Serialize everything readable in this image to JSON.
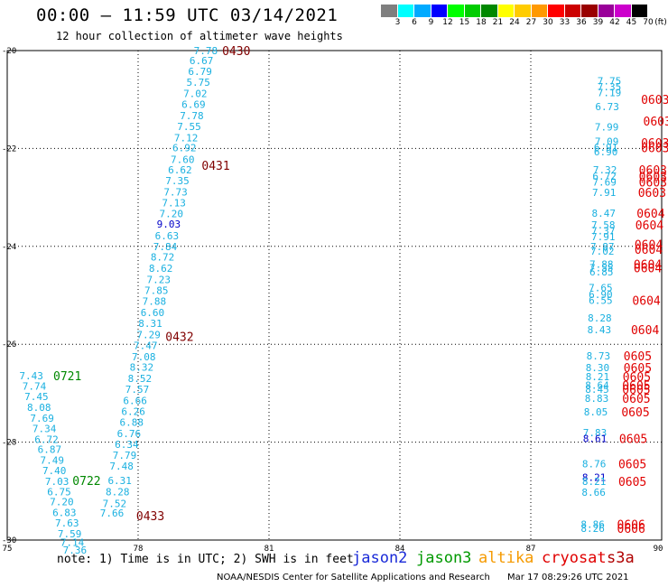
{
  "header": {
    "title": "00:00 – 11:59 UTC 03/14/2021",
    "subtitle": "12 hour collection of altimeter wave heights"
  },
  "legend": {
    "unit": "(ft)",
    "bins": [
      {
        "label": "3",
        "color": "#7f7f7f"
      },
      {
        "label": "6",
        "color": "#00ffff"
      },
      {
        "label": "9",
        "color": "#00aaff"
      },
      {
        "label": "12",
        "color": "#0000ff"
      },
      {
        "label": "15",
        "color": "#00ff00"
      },
      {
        "label": "18",
        "color": "#00cc00"
      },
      {
        "label": "21",
        "color": "#008800"
      },
      {
        "label": "24",
        "color": "#ffff00"
      },
      {
        "label": "27",
        "color": "#ffcc00"
      },
      {
        "label": "30",
        "color": "#ff9900"
      },
      {
        "label": "33",
        "color": "#ff0000"
      },
      {
        "label": "36",
        "color": "#cc0000"
      },
      {
        "label": "39",
        "color": "#990000"
      },
      {
        "label": "42",
        "color": "#990099"
      },
      {
        "label": "45",
        "color": "#cc00cc"
      },
      {
        "label": "70",
        "color": "#000000"
      }
    ]
  },
  "colors": {
    "swh_low": "#1ab0e0",
    "swh_mid": "#0000c8",
    "time_red": "#e00000",
    "time_dark": "#800000",
    "time_green": "#008800"
  },
  "note": "note: 1) Time is in UTC; 2) SWH is in feet",
  "missions": [
    {
      "label": "jason2",
      "color": "#1a2ad8"
    },
    {
      "label": "jason3",
      "color": "#009900"
    },
    {
      "label": "altika",
      "color": "#f59a00"
    },
    {
      "label": "cryosat",
      "color": "#e00000"
    },
    {
      "label": "s3a",
      "color": "#b00000"
    }
  ],
  "footer": {
    "credit": "NOAA/NESDIS Center for Satellite Applications and Research",
    "timestamp": "Mar 17 08:29:26 UTC 2021"
  },
  "map": {
    "lon_range": [
      75,
      90
    ],
    "lat_range": [
      -30,
      -20
    ],
    "x_ticks": [
      "75",
      "78",
      "81",
      "84",
      "87",
      "90"
    ],
    "y_ticks": [
      "-20",
      "-22",
      "-24",
      "-26",
      "-28",
      "-30"
    ],
    "swh_readings": [
      {
        "lon": 79.55,
        "lat": -20.0,
        "text": "7.78",
        "color": "#1ab0e0"
      },
      {
        "lon": 79.45,
        "lat": -20.2,
        "text": "6.67",
        "color": "#1ab0e0"
      },
      {
        "lon": 79.42,
        "lat": -20.42,
        "text": "6.79",
        "color": "#1ab0e0"
      },
      {
        "lon": 79.38,
        "lat": -20.65,
        "text": "5.75",
        "color": "#1ab0e0"
      },
      {
        "lon": 79.31,
        "lat": -20.88,
        "text": "7.02",
        "color": "#1ab0e0"
      },
      {
        "lon": 79.27,
        "lat": -21.1,
        "text": "6.69",
        "color": "#1ab0e0"
      },
      {
        "lon": 79.23,
        "lat": -21.33,
        "text": "7.78",
        "color": "#1ab0e0"
      },
      {
        "lon": 79.17,
        "lat": -21.55,
        "text": "7.55",
        "color": "#1ab0e0"
      },
      {
        "lon": 79.1,
        "lat": -21.78,
        "text": "7.12",
        "color": "#1ab0e0"
      },
      {
        "lon": 79.06,
        "lat": -21.98,
        "text": "6.92",
        "color": "#1ab0e0"
      },
      {
        "lon": 79.02,
        "lat": -22.22,
        "text": "7.60",
        "color": "#1ab0e0"
      },
      {
        "lon": 78.96,
        "lat": -22.44,
        "text": "6.62",
        "color": "#1ab0e0"
      },
      {
        "lon": 78.9,
        "lat": -22.66,
        "text": "7.35",
        "color": "#1ab0e0"
      },
      {
        "lon": 78.86,
        "lat": -22.89,
        "text": "7.73",
        "color": "#1ab0e0"
      },
      {
        "lon": 78.82,
        "lat": -23.11,
        "text": "7.13",
        "color": "#1ab0e0"
      },
      {
        "lon": 78.76,
        "lat": -23.33,
        "text": "7.20",
        "color": "#1ab0e0"
      },
      {
        "lon": 78.7,
        "lat": -23.54,
        "text": "9.03",
        "color": "#0000c8"
      },
      {
        "lon": 78.66,
        "lat": -23.78,
        "text": "6.63",
        "color": "#1ab0e0"
      },
      {
        "lon": 78.62,
        "lat": -24.0,
        "text": "7.84",
        "color": "#1ab0e0"
      },
      {
        "lon": 78.56,
        "lat": -24.22,
        "text": "8.72",
        "color": "#1ab0e0"
      },
      {
        "lon": 78.52,
        "lat": -24.45,
        "text": "8.62",
        "color": "#1ab0e0"
      },
      {
        "lon": 78.47,
        "lat": -24.68,
        "text": "7.23",
        "color": "#1ab0e0"
      },
      {
        "lon": 78.42,
        "lat": -24.9,
        "text": "7.85",
        "color": "#1ab0e0"
      },
      {
        "lon": 78.37,
        "lat": -25.12,
        "text": "7.88",
        "color": "#1ab0e0"
      },
      {
        "lon": 78.33,
        "lat": -25.35,
        "text": "6.60",
        "color": "#1ab0e0"
      },
      {
        "lon": 78.28,
        "lat": -25.57,
        "text": "8.31",
        "color": "#1ab0e0"
      },
      {
        "lon": 78.24,
        "lat": -25.8,
        "text": "7.29",
        "color": "#1ab0e0"
      },
      {
        "lon": 78.17,
        "lat": -26.02,
        "text": "7.47",
        "color": "#1ab0e0"
      },
      {
        "lon": 78.13,
        "lat": -26.25,
        "text": "7.08",
        "color": "#1ab0e0"
      },
      {
        "lon": 78.08,
        "lat": -26.47,
        "text": "8.32",
        "color": "#1ab0e0"
      },
      {
        "lon": 78.04,
        "lat": -26.7,
        "text": "8.52",
        "color": "#1ab0e0"
      },
      {
        "lon": 77.98,
        "lat": -26.92,
        "text": "7.57",
        "color": "#1ab0e0"
      },
      {
        "lon": 77.93,
        "lat": -27.15,
        "text": "6.66",
        "color": "#1ab0e0"
      },
      {
        "lon": 77.89,
        "lat": -27.37,
        "text": "6.26",
        "color": "#1ab0e0"
      },
      {
        "lon": 77.85,
        "lat": -27.59,
        "text": "6.88",
        "color": "#1ab0e0"
      },
      {
        "lon": 77.79,
        "lat": -27.82,
        "text": "6.76",
        "color": "#1ab0e0"
      },
      {
        "lon": 77.74,
        "lat": -28.04,
        "text": "6.34",
        "color": "#1ab0e0"
      },
      {
        "lon": 77.69,
        "lat": -28.27,
        "text": "7.79",
        "color": "#1ab0e0"
      },
      {
        "lon": 77.62,
        "lat": -28.49,
        "text": "7.48",
        "color": "#1ab0e0"
      },
      {
        "lon": 77.58,
        "lat": -28.78,
        "text": "6.31",
        "color": "#1ab0e0"
      },
      {
        "lon": 77.53,
        "lat": -29.01,
        "text": "8.28",
        "color": "#1ab0e0"
      },
      {
        "lon": 77.46,
        "lat": -29.25,
        "text": "7.52",
        "color": "#1ab0e0"
      },
      {
        "lon": 77.4,
        "lat": -29.45,
        "text": "7.66",
        "color": "#1ab0e0"
      },
      {
        "lon": 75.55,
        "lat": -26.64,
        "text": "7.43",
        "color": "#1ab0e0"
      },
      {
        "lon": 75.62,
        "lat": -26.85,
        "text": "7.74",
        "color": "#1ab0e0"
      },
      {
        "lon": 75.67,
        "lat": -27.07,
        "text": "7.45",
        "color": "#1ab0e0"
      },
      {
        "lon": 75.73,
        "lat": -27.29,
        "text": "8.08",
        "color": "#1ab0e0"
      },
      {
        "lon": 75.8,
        "lat": -27.51,
        "text": "7.69",
        "color": "#1ab0e0"
      },
      {
        "lon": 75.85,
        "lat": -27.72,
        "text": "7.34",
        "color": "#1ab0e0"
      },
      {
        "lon": 75.9,
        "lat": -27.94,
        "text": "6.72",
        "color": "#1ab0e0"
      },
      {
        "lon": 75.97,
        "lat": -28.15,
        "text": "6.87",
        "color": "#1ab0e0"
      },
      {
        "lon": 76.03,
        "lat": -28.37,
        "text": "7.49",
        "color": "#1ab0e0"
      },
      {
        "lon": 76.08,
        "lat": -28.58,
        "text": "7.40",
        "color": "#1ab0e0"
      },
      {
        "lon": 76.14,
        "lat": -28.8,
        "text": "7.03",
        "color": "#1ab0e0"
      },
      {
        "lon": 76.19,
        "lat": -29.01,
        "text": "6.75",
        "color": "#1ab0e0"
      },
      {
        "lon": 76.25,
        "lat": -29.22,
        "text": "7.20",
        "color": "#1ab0e0"
      },
      {
        "lon": 76.31,
        "lat": -29.44,
        "text": "6.83",
        "color": "#1ab0e0"
      },
      {
        "lon": 76.37,
        "lat": -29.65,
        "text": "7.63",
        "color": "#1ab0e0"
      },
      {
        "lon": 76.43,
        "lat": -29.87,
        "text": "7.59",
        "color": "#1ab0e0"
      },
      {
        "lon": 76.49,
        "lat": -30.05,
        "text": "7.14",
        "color": "#1ab0e0"
      },
      {
        "lon": 76.55,
        "lat": -30.2,
        "text": "7.36",
        "color": "#1ab0e0"
      },
      {
        "lon": 88.8,
        "lat": -20.62,
        "text": "7.75",
        "color": "#1ab0e0"
      },
      {
        "lon": 88.8,
        "lat": -20.74,
        "text": "7.35",
        "color": "#1ab0e0"
      },
      {
        "lon": 88.8,
        "lat": -20.86,
        "text": "7.19",
        "color": "#1ab0e0"
      },
      {
        "lon": 88.75,
        "lat": -21.14,
        "text": "6.73",
        "color": "#1ab0e0"
      },
      {
        "lon": 88.74,
        "lat": -21.56,
        "text": "7.99",
        "color": "#1ab0e0"
      },
      {
        "lon": 88.74,
        "lat": -21.85,
        "text": "7.09",
        "color": "#1ab0e0"
      },
      {
        "lon": 88.72,
        "lat": -21.97,
        "text": "6.91",
        "color": "#1ab0e0"
      },
      {
        "lon": 88.72,
        "lat": -22.07,
        "text": "6.90",
        "color": "#1ab0e0"
      },
      {
        "lon": 88.7,
        "lat": -22.44,
        "text": "7.32",
        "color": "#1ab0e0"
      },
      {
        "lon": 88.69,
        "lat": -22.56,
        "text": "6.72",
        "color": "#1ab0e0"
      },
      {
        "lon": 88.69,
        "lat": -22.68,
        "text": "7.69",
        "color": "#1ab0e0"
      },
      {
        "lon": 88.68,
        "lat": -22.9,
        "text": "7.91",
        "color": "#1ab0e0"
      },
      {
        "lon": 88.67,
        "lat": -23.32,
        "text": "8.47",
        "color": "#1ab0e0"
      },
      {
        "lon": 88.66,
        "lat": -23.56,
        "text": "7.58",
        "color": "#1ab0e0"
      },
      {
        "lon": 88.66,
        "lat": -23.68,
        "text": "7.37",
        "color": "#1ab0e0"
      },
      {
        "lon": 88.66,
        "lat": -23.8,
        "text": "7.91",
        "color": "#1ab0e0"
      },
      {
        "lon": 88.64,
        "lat": -24.0,
        "text": "7.87",
        "color": "#1ab0e0"
      },
      {
        "lon": 88.64,
        "lat": -24.1,
        "text": "7.02",
        "color": "#1ab0e0"
      },
      {
        "lon": 88.62,
        "lat": -24.36,
        "text": "7.88",
        "color": "#1ab0e0"
      },
      {
        "lon": 88.62,
        "lat": -24.44,
        "text": "7.55",
        "color": "#1ab0e0"
      },
      {
        "lon": 88.62,
        "lat": -24.52,
        "text": "6.85",
        "color": "#1ab0e0"
      },
      {
        "lon": 88.6,
        "lat": -24.84,
        "text": "7.65",
        "color": "#1ab0e0"
      },
      {
        "lon": 88.6,
        "lat": -24.98,
        "text": "6.90",
        "color": "#1ab0e0"
      },
      {
        "lon": 88.6,
        "lat": -25.1,
        "text": "6.55",
        "color": "#1ab0e0"
      },
      {
        "lon": 88.58,
        "lat": -25.46,
        "text": "8.28",
        "color": "#1ab0e0"
      },
      {
        "lon": 88.57,
        "lat": -25.7,
        "text": "8.43",
        "color": "#1ab0e0"
      },
      {
        "lon": 88.55,
        "lat": -26.24,
        "text": "8.73",
        "color": "#1ab0e0"
      },
      {
        "lon": 88.53,
        "lat": -26.48,
        "text": "8.30",
        "color": "#1ab0e0"
      },
      {
        "lon": 88.53,
        "lat": -26.66,
        "text": "8.21",
        "color": "#1ab0e0"
      },
      {
        "lon": 88.52,
        "lat": -26.84,
        "text": "8.64",
        "color": "#1ab0e0"
      },
      {
        "lon": 88.52,
        "lat": -26.92,
        "text": "8.45",
        "color": "#1ab0e0"
      },
      {
        "lon": 88.51,
        "lat": -27.1,
        "text": "8.83",
        "color": "#1ab0e0"
      },
      {
        "lon": 88.49,
        "lat": -27.38,
        "text": "8.05",
        "color": "#1ab0e0"
      },
      {
        "lon": 88.47,
        "lat": -27.8,
        "text": "7.83",
        "color": "#1ab0e0"
      },
      {
        "lon": 88.47,
        "lat": -27.92,
        "text": "8.61",
        "color": "#0000c8"
      },
      {
        "lon": 88.45,
        "lat": -28.44,
        "text": "8.76",
        "color": "#1ab0e0"
      },
      {
        "lon": 88.45,
        "lat": -28.72,
        "text": "8.21",
        "color": "#0000c8"
      },
      {
        "lon": 88.45,
        "lat": -28.8,
        "text": "8.21",
        "color": "#1ab0e0"
      },
      {
        "lon": 88.44,
        "lat": -29.02,
        "text": "8.66",
        "color": "#1ab0e0"
      },
      {
        "lon": 88.42,
        "lat": -29.68,
        "text": "8.86",
        "color": "#1ab0e0"
      },
      {
        "lon": 88.42,
        "lat": -29.76,
        "text": "8.26",
        "color": "#1ab0e0"
      }
    ],
    "time_labels": [
      {
        "lon": 80.25,
        "lat": -20.0,
        "text": "0430",
        "color": "#800000"
      },
      {
        "lon": 79.78,
        "lat": -22.34,
        "text": "0431",
        "color": "#800000"
      },
      {
        "lon": 78.95,
        "lat": -25.84,
        "text": "0432",
        "color": "#800000"
      },
      {
        "lon": 78.28,
        "lat": -29.5,
        "text": "0433",
        "color": "#800000"
      },
      {
        "lon": 76.38,
        "lat": -26.64,
        "text": "0721",
        "color": "#008800"
      },
      {
        "lon": 76.82,
        "lat": -28.78,
        "text": "0722",
        "color": "#008800"
      },
      {
        "lon": 89.85,
        "lat": -21.0,
        "text": "0603",
        "color": "#e00000"
      },
      {
        "lon": 89.9,
        "lat": -21.44,
        "text": "0603",
        "color": "#e00000"
      },
      {
        "lon": 89.85,
        "lat": -21.88,
        "text": "0603",
        "color": "#e00000"
      },
      {
        "lon": 89.85,
        "lat": -21.98,
        "text": "0603",
        "color": "#e00000"
      },
      {
        "lon": 89.8,
        "lat": -22.44,
        "text": "0603",
        "color": "#e00000"
      },
      {
        "lon": 89.8,
        "lat": -22.56,
        "text": "0603",
        "color": "#e00000"
      },
      {
        "lon": 89.8,
        "lat": -22.68,
        "text": "0603",
        "color": "#e00000"
      },
      {
        "lon": 89.78,
        "lat": -22.9,
        "text": "0603",
        "color": "#e00000"
      },
      {
        "lon": 89.75,
        "lat": -23.32,
        "text": "0604",
        "color": "#e00000"
      },
      {
        "lon": 89.72,
        "lat": -23.56,
        "text": "0604",
        "color": "#e00000"
      },
      {
        "lon": 89.7,
        "lat": -23.96,
        "text": "0604",
        "color": "#e00000"
      },
      {
        "lon": 89.7,
        "lat": -24.06,
        "text": "0604",
        "color": "#e00000"
      },
      {
        "lon": 89.68,
        "lat": -24.36,
        "text": "0604",
        "color": "#e00000"
      },
      {
        "lon": 89.68,
        "lat": -24.44,
        "text": "0604",
        "color": "#e00000"
      },
      {
        "lon": 89.65,
        "lat": -25.1,
        "text": "0604",
        "color": "#e00000"
      },
      {
        "lon": 89.62,
        "lat": -25.7,
        "text": "0604",
        "color": "#e00000"
      },
      {
        "lon": 89.45,
        "lat": -26.24,
        "text": "0605",
        "color": "#e00000"
      },
      {
        "lon": 89.45,
        "lat": -26.48,
        "text": "0605",
        "color": "#e00000"
      },
      {
        "lon": 89.43,
        "lat": -26.66,
        "text": "0605",
        "color": "#e00000"
      },
      {
        "lon": 89.42,
        "lat": -26.84,
        "text": "0605",
        "color": "#e00000"
      },
      {
        "lon": 89.42,
        "lat": -26.92,
        "text": "0605",
        "color": "#e00000"
      },
      {
        "lon": 89.42,
        "lat": -27.1,
        "text": "0605",
        "color": "#e00000"
      },
      {
        "lon": 89.4,
        "lat": -27.38,
        "text": "0605",
        "color": "#e00000"
      },
      {
        "lon": 89.35,
        "lat": -27.92,
        "text": "0605",
        "color": "#e00000"
      },
      {
        "lon": 89.33,
        "lat": -28.44,
        "text": "0605",
        "color": "#e00000"
      },
      {
        "lon": 89.33,
        "lat": -28.8,
        "text": "0605",
        "color": "#e00000"
      },
      {
        "lon": 89.3,
        "lat": -29.68,
        "text": "0606",
        "color": "#e00000"
      },
      {
        "lon": 89.3,
        "lat": -29.76,
        "text": "0606",
        "color": "#e00000"
      }
    ]
  }
}
